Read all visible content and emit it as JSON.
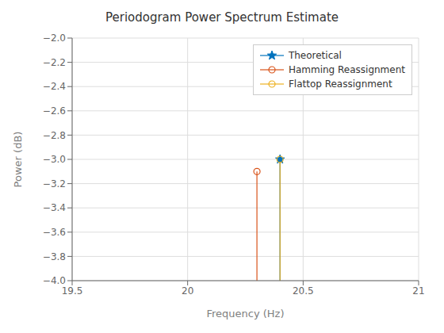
{
  "chart_data": {
    "type": "stem",
    "title": "Periodogram Power Spectrum Estimate",
    "x_label": "Frequency (Hz)",
    "y_label": "Power (dB)",
    "xlim": [
      19.5,
      21.0
    ],
    "ylim": [
      -4.0,
      -2.0
    ],
    "xticks": [
      19.5,
      20,
      20.5,
      21
    ],
    "yticks": [
      {
        "value": -4.0,
        "label": "−4.0"
      },
      {
        "value": -3.8,
        "label": "−3.8"
      },
      {
        "value": -3.6,
        "label": "−3.6"
      },
      {
        "value": -3.4,
        "label": "−3.4"
      },
      {
        "value": -3.2,
        "label": "−3.2"
      },
      {
        "value": -3.0,
        "label": "−3.0"
      },
      {
        "value": -2.8,
        "label": "−2.8"
      },
      {
        "value": -2.6,
        "label": "−2.6"
      },
      {
        "value": -2.4,
        "label": "−2.4"
      },
      {
        "value": -2.2,
        "label": "−2.2"
      },
      {
        "value": -2.0,
        "label": "−2.0"
      }
    ],
    "grid": true,
    "legend": "upper right",
    "series": [
      {
        "name": "Theoretical",
        "color": "#0072BD",
        "marker": "star",
        "x": [
          20.4
        ],
        "values": [
          -3.0
        ]
      },
      {
        "name": "Hamming Reassignment",
        "color": "#D95319",
        "marker": "circle",
        "x": [
          20.3
        ],
        "values": [
          -3.1
        ]
      },
      {
        "name": "Flattop Reassignment",
        "color": "#EDB120",
        "marker": "circle",
        "x": [
          20.4
        ],
        "values": [
          -3.0
        ]
      }
    ]
  }
}
